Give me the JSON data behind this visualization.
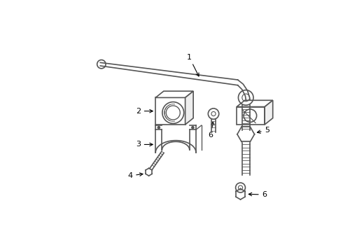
{
  "bg_color": "#ffffff",
  "line_color": "#555555",
  "label_color": "#000000",
  "figsize": [
    4.9,
    3.6
  ],
  "dpi": 100
}
